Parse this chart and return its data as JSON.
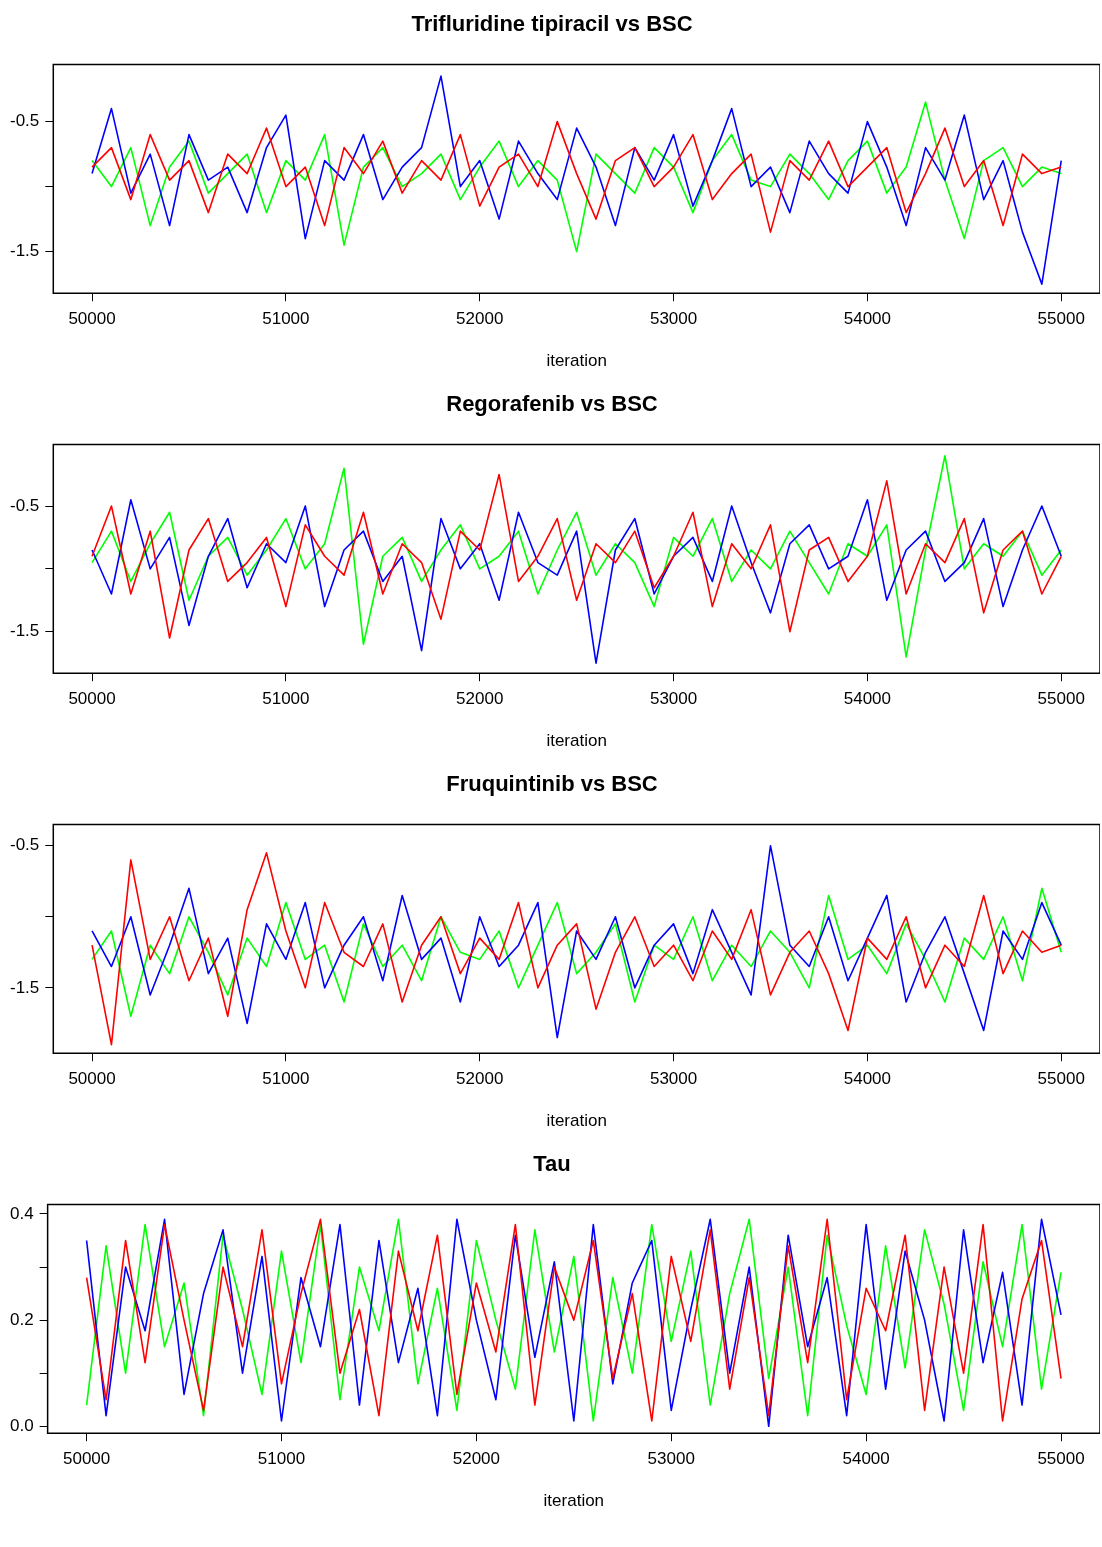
{
  "chart_data": [
    {
      "type": "line",
      "title": "Trifluridine tipiracil vs BSC",
      "xlabel": "iteration",
      "xlim": [
        49800,
        55200
      ],
      "xticks": [
        50000,
        51000,
        52000,
        53000,
        54000,
        55000
      ],
      "ylim": [
        -1.82,
        -0.06
      ],
      "yticks": [
        {
          "value": -0.5,
          "label": "-0.5"
        },
        {
          "value": -1.0,
          "label": null
        },
        {
          "value": -1.5,
          "label": "-1.5"
        }
      ],
      "x": [
        50000,
        50100,
        50200,
        50300,
        50400,
        50500,
        50600,
        50700,
        50800,
        50900,
        51000,
        51100,
        51200,
        51300,
        51400,
        51500,
        51600,
        51700,
        51800,
        51900,
        52000,
        52100,
        52200,
        52300,
        52400,
        52500,
        52600,
        52700,
        52800,
        52900,
        53000,
        53100,
        53200,
        53300,
        53400,
        53500,
        53600,
        53700,
        53800,
        53900,
        54000,
        54100,
        54200,
        54300,
        54400,
        54500,
        54600,
        54700,
        54800,
        54900,
        55000
      ],
      "series": [
        {
          "color": "#ff0000",
          "values": [
            -0.85,
            -0.7,
            -1.1,
            -0.6,
            -0.95,
            -0.8,
            -1.2,
            -0.75,
            -0.9,
            -0.55,
            -1.0,
            -0.85,
            -1.3,
            -0.7,
            -0.9,
            -0.65,
            -1.05,
            -0.8,
            -0.95,
            -0.6,
            -1.15,
            -0.85,
            -0.75,
            -1.0,
            -0.5,
            -0.9,
            -1.25,
            -0.8,
            -0.7,
            -1.0,
            -0.85,
            -0.6,
            -1.1,
            -0.9,
            -0.75,
            -1.35,
            -0.8,
            -0.95,
            -0.65,
            -1.0,
            -0.85,
            -0.7,
            -1.2,
            -0.9,
            -0.55,
            -1.0,
            -0.8,
            -1.3,
            -0.75,
            -0.9,
            -0.85
          ]
        },
        {
          "color": "#0000ff",
          "values": [
            -0.9,
            -0.4,
            -1.05,
            -0.75,
            -1.3,
            -0.6,
            -0.95,
            -0.85,
            -1.2,
            -0.7,
            -0.45,
            -1.4,
            -0.8,
            -0.95,
            -0.6,
            -1.1,
            -0.85,
            -0.7,
            -0.15,
            -1.0,
            -0.8,
            -1.25,
            -0.65,
            -0.9,
            -1.1,
            -0.55,
            -0.85,
            -1.3,
            -0.7,
            -0.95,
            -0.6,
            -1.15,
            -0.8,
            -0.4,
            -1.0,
            -0.85,
            -1.2,
            -0.65,
            -0.9,
            -1.05,
            -0.5,
            -0.85,
            -1.3,
            -0.7,
            -0.95,
            -0.45,
            -1.1,
            -0.8,
            -1.35,
            -1.75,
            -0.8
          ]
        },
        {
          "color": "#00ff00",
          "values": [
            -0.8,
            -1.0,
            -0.7,
            -1.3,
            -0.85,
            -0.65,
            -1.05,
            -0.9,
            -0.75,
            -1.2,
            -0.8,
            -0.95,
            -0.6,
            -1.45,
            -0.85,
            -0.7,
            -1.0,
            -0.9,
            -0.75,
            -1.1,
            -0.85,
            -0.65,
            -1.0,
            -0.8,
            -0.95,
            -1.5,
            -0.75,
            -0.9,
            -1.05,
            -0.7,
            -0.85,
            -1.2,
            -0.8,
            -0.6,
            -0.95,
            -1.0,
            -0.75,
            -0.9,
            -1.1,
            -0.8,
            -0.65,
            -1.05,
            -0.85,
            -0.35,
            -0.95,
            -1.4,
            -0.8,
            -0.7,
            -1.0,
            -0.85,
            -0.9
          ]
        }
      ]
    },
    {
      "type": "line",
      "title": "Regorafenib vs BSC",
      "xlabel": "iteration",
      "xlim": [
        49800,
        55200
      ],
      "xticks": [
        50000,
        51000,
        52000,
        53000,
        54000,
        55000
      ],
      "ylim": [
        -1.83,
        -0.01
      ],
      "yticks": [
        {
          "value": -0.5,
          "label": "-0.5"
        },
        {
          "value": -1.0,
          "label": null
        },
        {
          "value": -1.5,
          "label": "-1.5"
        }
      ],
      "x": [
        50000,
        50100,
        50200,
        50300,
        50400,
        50500,
        50600,
        50700,
        50800,
        50900,
        51000,
        51100,
        51200,
        51300,
        51400,
        51500,
        51600,
        51700,
        51800,
        51900,
        52000,
        52100,
        52200,
        52300,
        52400,
        52500,
        52600,
        52700,
        52800,
        52900,
        53000,
        53100,
        53200,
        53300,
        53400,
        53500,
        53600,
        53700,
        53800,
        53900,
        54000,
        54100,
        54200,
        54300,
        54400,
        54500,
        54600,
        54700,
        54800,
        54900,
        55000
      ],
      "series": [
        {
          "color": "#ff0000",
          "values": [
            -0.9,
            -0.5,
            -1.2,
            -0.7,
            -1.55,
            -0.85,
            -0.6,
            -1.1,
            -0.95,
            -0.75,
            -1.3,
            -0.65,
            -0.9,
            -1.05,
            -0.55,
            -1.2,
            -0.8,
            -0.95,
            -1.4,
            -0.7,
            -0.85,
            -0.25,
            -1.1,
            -0.9,
            -0.6,
            -1.25,
            -0.8,
            -0.95,
            -0.7,
            -1.15,
            -0.9,
            -0.55,
            -1.3,
            -0.8,
            -1.0,
            -0.65,
            -1.5,
            -0.85,
            -0.75,
            -1.1,
            -0.9,
            -0.3,
            -1.2,
            -0.8,
            -0.95,
            -0.6,
            -1.35,
            -0.85,
            -0.7,
            -1.2,
            -0.9
          ]
        },
        {
          "color": "#0000ff",
          "values": [
            -0.85,
            -1.2,
            -0.45,
            -1.0,
            -0.75,
            -1.45,
            -0.9,
            -0.6,
            -1.15,
            -0.8,
            -0.95,
            -0.5,
            -1.3,
            -0.85,
            -0.7,
            -1.1,
            -0.9,
            -1.65,
            -0.6,
            -1.0,
            -0.8,
            -1.25,
            -0.55,
            -0.95,
            -1.05,
            -0.7,
            -1.75,
            -0.85,
            -0.6,
            -1.2,
            -0.9,
            -0.75,
            -1.1,
            -0.5,
            -0.95,
            -1.35,
            -0.8,
            -0.65,
            -1.0,
            -0.9,
            -0.45,
            -1.25,
            -0.85,
            -0.7,
            -1.1,
            -0.95,
            -0.6,
            -1.3,
            -0.85,
            -0.5,
            -0.9
          ]
        },
        {
          "color": "#00ff00",
          "values": [
            -0.95,
            -0.7,
            -1.1,
            -0.8,
            -0.55,
            -1.25,
            -0.9,
            -0.75,
            -1.05,
            -0.85,
            -0.6,
            -1.0,
            -0.8,
            -0.2,
            -1.6,
            -0.9,
            -0.75,
            -1.1,
            -0.85,
            -0.65,
            -1.0,
            -0.9,
            -0.7,
            -1.2,
            -0.85,
            -0.55,
            -1.05,
            -0.8,
            -0.95,
            -1.3,
            -0.75,
            -0.9,
            -0.6,
            -1.1,
            -0.85,
            -1.0,
            -0.7,
            -0.95,
            -1.2,
            -0.8,
            -0.9,
            -0.65,
            -1.7,
            -0.85,
            -0.1,
            -1.0,
            -0.8,
            -0.9,
            -0.7,
            -1.05,
            -0.85
          ]
        }
      ]
    },
    {
      "type": "line",
      "title": "Fruquintinib vs BSC",
      "xlabel": "iteration",
      "xlim": [
        49800,
        55200
      ],
      "xticks": [
        50000,
        51000,
        52000,
        53000,
        54000,
        55000
      ],
      "ylim": [
        -1.96,
        -0.35
      ],
      "yticks": [
        {
          "value": -0.5,
          "label": "-0.5"
        },
        {
          "value": -1.0,
          "label": null
        },
        {
          "value": -1.5,
          "label": "-1.5"
        }
      ],
      "x": [
        50000,
        50100,
        50200,
        50300,
        50400,
        50500,
        50600,
        50700,
        50800,
        50900,
        51000,
        51100,
        51200,
        51300,
        51400,
        51500,
        51600,
        51700,
        51800,
        51900,
        52000,
        52100,
        52200,
        52300,
        52400,
        52500,
        52600,
        52700,
        52800,
        52900,
        53000,
        53100,
        53200,
        53300,
        53400,
        53500,
        53600,
        53700,
        53800,
        53900,
        54000,
        54100,
        54200,
        54300,
        54400,
        54500,
        54600,
        54700,
        54800,
        54900,
        55000
      ],
      "series": [
        {
          "color": "#ff0000",
          "values": [
            -1.2,
            -1.9,
            -0.6,
            -1.3,
            -1.0,
            -1.45,
            -1.15,
            -1.7,
            -0.95,
            -0.55,
            -1.1,
            -1.5,
            -0.9,
            -1.25,
            -1.35,
            -1.05,
            -1.6,
            -1.2,
            -1.0,
            -1.4,
            -1.15,
            -1.3,
            -0.9,
            -1.5,
            -1.2,
            -1.05,
            -1.65,
            -1.25,
            -1.0,
            -1.35,
            -1.2,
            -1.45,
            -1.1,
            -1.3,
            -0.95,
            -1.55,
            -1.25,
            -1.1,
            -1.4,
            -1.8,
            -1.15,
            -1.3,
            -1.0,
            -1.5,
            -1.2,
            -1.35,
            -0.85,
            -1.4,
            -1.1,
            -1.25,
            -1.2
          ]
        },
        {
          "color": "#0000ff",
          "values": [
            -1.1,
            -1.35,
            -1.0,
            -1.55,
            -1.2,
            -0.8,
            -1.4,
            -1.15,
            -1.75,
            -1.05,
            -1.3,
            -0.9,
            -1.5,
            -1.2,
            -1.0,
            -1.45,
            -0.85,
            -1.3,
            -1.15,
            -1.6,
            -1.0,
            -1.35,
            -1.2,
            -0.9,
            -1.85,
            -1.1,
            -1.3,
            -1.0,
            -1.5,
            -1.2,
            -1.05,
            -1.4,
            -0.95,
            -1.25,
            -1.55,
            -0.5,
            -1.2,
            -1.35,
            -1.0,
            -1.45,
            -1.15,
            -0.85,
            -1.6,
            -1.25,
            -1.0,
            -1.4,
            -1.8,
            -1.1,
            -1.3,
            -0.9,
            -1.2
          ]
        },
        {
          "color": "#00ff00",
          "values": [
            -1.3,
            -1.1,
            -1.7,
            -1.2,
            -1.4,
            -1.0,
            -1.25,
            -1.55,
            -1.15,
            -1.35,
            -0.9,
            -1.3,
            -1.2,
            -1.6,
            -1.05,
            -1.35,
            -1.2,
            -1.45,
            -1.0,
            -1.25,
            -1.3,
            -1.1,
            -1.5,
            -1.2,
            -0.9,
            -1.4,
            -1.25,
            -1.05,
            -1.6,
            -1.2,
            -1.3,
            -1.0,
            -1.45,
            -1.2,
            -1.35,
            -1.1,
            -1.25,
            -1.5,
            -0.85,
            -1.3,
            -1.2,
            -1.4,
            -1.05,
            -1.3,
            -1.6,
            -1.15,
            -1.3,
            -1.0,
            -1.45,
            -0.8,
            -1.25
          ]
        }
      ]
    },
    {
      "type": "line",
      "title": "Tau",
      "xlabel": "iteration",
      "xlim": [
        49800,
        55200
      ],
      "xticks": [
        50000,
        51000,
        52000,
        53000,
        54000,
        55000
      ],
      "ylim": [
        -0.013,
        0.418
      ],
      "yticks": [
        {
          "value": 0,
          "label": "0.0"
        },
        {
          "value": 0.1,
          "label": null
        },
        {
          "value": 0.2,
          "label": "0.2"
        },
        {
          "value": 0.3,
          "label": null
        },
        {
          "value": 0.4,
          "label": "0.4"
        }
      ],
      "x": [
        50000,
        50100,
        50200,
        50300,
        50400,
        50500,
        50600,
        50700,
        50800,
        50900,
        51000,
        51100,
        51200,
        51300,
        51400,
        51500,
        51600,
        51700,
        51800,
        51900,
        52000,
        52100,
        52200,
        52300,
        52400,
        52500,
        52600,
        52700,
        52800,
        52900,
        53000,
        53100,
        53200,
        53300,
        53400,
        53500,
        53600,
        53700,
        53800,
        53900,
        54000,
        54100,
        54200,
        54300,
        54400,
        54500,
        54600,
        54700,
        54800,
        54900,
        55000
      ],
      "series": [
        {
          "color": "#ff0000",
          "values": [
            0.28,
            0.05,
            0.35,
            0.12,
            0.38,
            0.2,
            0.03,
            0.3,
            0.15,
            0.37,
            0.08,
            0.25,
            0.39,
            0.1,
            0.22,
            0.02,
            0.33,
            0.18,
            0.36,
            0.06,
            0.27,
            0.14,
            0.38,
            0.04,
            0.3,
            0.2,
            0.35,
            0.09,
            0.25,
            0.01,
            0.32,
            0.16,
            0.37,
            0.07,
            0.28,
            0.02,
            0.34,
            0.12,
            0.39,
            0.05,
            0.26,
            0.18,
            0.36,
            0.03,
            0.3,
            0.1,
            0.38,
            0.01,
            0.24,
            0.35,
            0.09
          ]
        },
        {
          "color": "#0000ff",
          "values": [
            0.35,
            0.02,
            0.3,
            0.18,
            0.39,
            0.06,
            0.25,
            0.37,
            0.1,
            0.32,
            0.01,
            0.28,
            0.15,
            0.38,
            0.04,
            0.35,
            0.12,
            0.26,
            0.02,
            0.39,
            0.2,
            0.05,
            0.36,
            0.13,
            0.31,
            0.01,
            0.38,
            0.08,
            0.27,
            0.35,
            0.03,
            0.22,
            0.39,
            0.1,
            0.3,
            0.0,
            0.36,
            0.15,
            0.28,
            0.02,
            0.38,
            0.07,
            0.33,
            0.2,
            0.01,
            0.37,
            0.12,
            0.29,
            0.04,
            0.39,
            0.21
          ]
        },
        {
          "color": "#00ff00",
          "values": [
            0.04,
            0.34,
            0.1,
            0.38,
            0.15,
            0.27,
            0.02,
            0.36,
            0.22,
            0.06,
            0.33,
            0.12,
            0.38,
            0.05,
            0.3,
            0.18,
            0.39,
            0.08,
            0.26,
            0.03,
            0.35,
            0.2,
            0.07,
            0.37,
            0.14,
            0.32,
            0.01,
            0.28,
            0.1,
            0.38,
            0.16,
            0.33,
            0.04,
            0.25,
            0.39,
            0.09,
            0.3,
            0.02,
            0.36,
            0.19,
            0.06,
            0.34,
            0.11,
            0.37,
            0.23,
            0.03,
            0.31,
            0.15,
            0.38,
            0.07,
            0.29
          ]
        }
      ]
    }
  ]
}
